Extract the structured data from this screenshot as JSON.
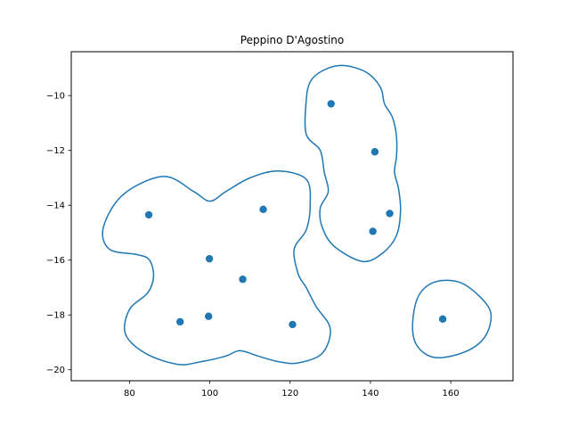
{
  "chart_data": {
    "type": "scatter",
    "title": "Peppino D'Agostino",
    "xlabel": "",
    "ylabel": "",
    "xlim": [
      65.5,
      175.5
    ],
    "ylim": [
      -20.4,
      -8.4
    ],
    "xticks": [
      80,
      100,
      120,
      140,
      160
    ],
    "yticks": [
      -10,
      -12,
      -14,
      -16,
      -18,
      -20
    ],
    "xtick_labels": [
      "80",
      "100",
      "120",
      "140",
      "160"
    ],
    "ytick_labels": [
      "−10",
      "−12",
      "−14",
      "−16",
      "−18",
      "−20"
    ],
    "grid": false,
    "point_color": "#1f77b4",
    "outline_color": "#1f77b4",
    "points": [
      {
        "x": 84.8,
        "y": -14.35
      },
      {
        "x": 99.9,
        "y": -15.95
      },
      {
        "x": 113.3,
        "y": -14.15
      },
      {
        "x": 108.2,
        "y": -16.7
      },
      {
        "x": 92.6,
        "y": -18.25
      },
      {
        "x": 99.7,
        "y": -18.05
      },
      {
        "x": 120.6,
        "y": -18.35
      },
      {
        "x": 130.2,
        "y": -10.3
      },
      {
        "x": 141.1,
        "y": -12.05
      },
      {
        "x": 144.8,
        "y": -14.3
      },
      {
        "x": 140.6,
        "y": -14.95
      },
      {
        "x": 158.0,
        "y": -18.15
      }
    ],
    "outlines": [
      [
        [
          73.5,
          -14.8
        ],
        [
          78.5,
          -13.6
        ],
        [
          88.5,
          -12.95
        ],
        [
          96.0,
          -13.5
        ],
        [
          100.0,
          -13.85
        ],
        [
          104.0,
          -13.5
        ],
        [
          110.0,
          -13.0
        ],
        [
          117.0,
          -12.75
        ],
        [
          124.0,
          -13.05
        ],
        [
          125.0,
          -14.0
        ],
        [
          124.0,
          -14.9
        ],
        [
          121.0,
          -15.6
        ],
        [
          122.0,
          -16.5
        ],
        [
          124.0,
          -17.0
        ],
        [
          126.5,
          -17.7
        ],
        [
          130.0,
          -18.5
        ],
        [
          128.0,
          -19.4
        ],
        [
          122.0,
          -19.75
        ],
        [
          117.0,
          -19.7
        ],
        [
          112.0,
          -19.5
        ],
        [
          107.5,
          -19.3
        ],
        [
          104.0,
          -19.5
        ],
        [
          98.0,
          -19.7
        ],
        [
          92.0,
          -19.8
        ],
        [
          84.0,
          -19.4
        ],
        [
          79.0,
          -18.7
        ],
        [
          80.0,
          -17.8
        ],
        [
          84.5,
          -17.2
        ],
        [
          86.0,
          -16.6
        ],
        [
          85.0,
          -16.0
        ],
        [
          82.0,
          -15.8
        ],
        [
          75.0,
          -15.6
        ],
        [
          73.5,
          -14.8
        ]
      ],
      [
        [
          124.0,
          -10.2
        ],
        [
          125.0,
          -9.5
        ],
        [
          128.0,
          -9.1
        ],
        [
          133.0,
          -8.9
        ],
        [
          139.0,
          -9.15
        ],
        [
          142.5,
          -9.7
        ],
        [
          143.5,
          -10.3
        ],
        [
          145.5,
          -10.8
        ],
        [
          146.5,
          -11.5
        ],
        [
          146.5,
          -12.2
        ],
        [
          146.0,
          -12.8
        ],
        [
          147.0,
          -13.4
        ],
        [
          147.5,
          -14.2
        ],
        [
          146.5,
          -15.1
        ],
        [
          143.0,
          -15.75
        ],
        [
          138.0,
          -16.05
        ],
        [
          131.0,
          -15.5
        ],
        [
          128.0,
          -14.8
        ],
        [
          127.5,
          -14.1
        ],
        [
          129.5,
          -13.5
        ],
        [
          128.5,
          -12.8
        ],
        [
          127.5,
          -12.0
        ],
        [
          124.0,
          -11.4
        ],
        [
          124.0,
          -10.2
        ]
      ],
      [
        [
          152.0,
          -17.3
        ],
        [
          156.0,
          -16.8
        ],
        [
          162.0,
          -16.8
        ],
        [
          167.0,
          -17.3
        ],
        [
          170.0,
          -17.95
        ],
        [
          168.5,
          -18.8
        ],
        [
          163.5,
          -19.35
        ],
        [
          156.0,
          -19.55
        ],
        [
          151.5,
          -19.1
        ],
        [
          150.5,
          -18.3
        ],
        [
          152.0,
          -17.3
        ]
      ]
    ]
  }
}
